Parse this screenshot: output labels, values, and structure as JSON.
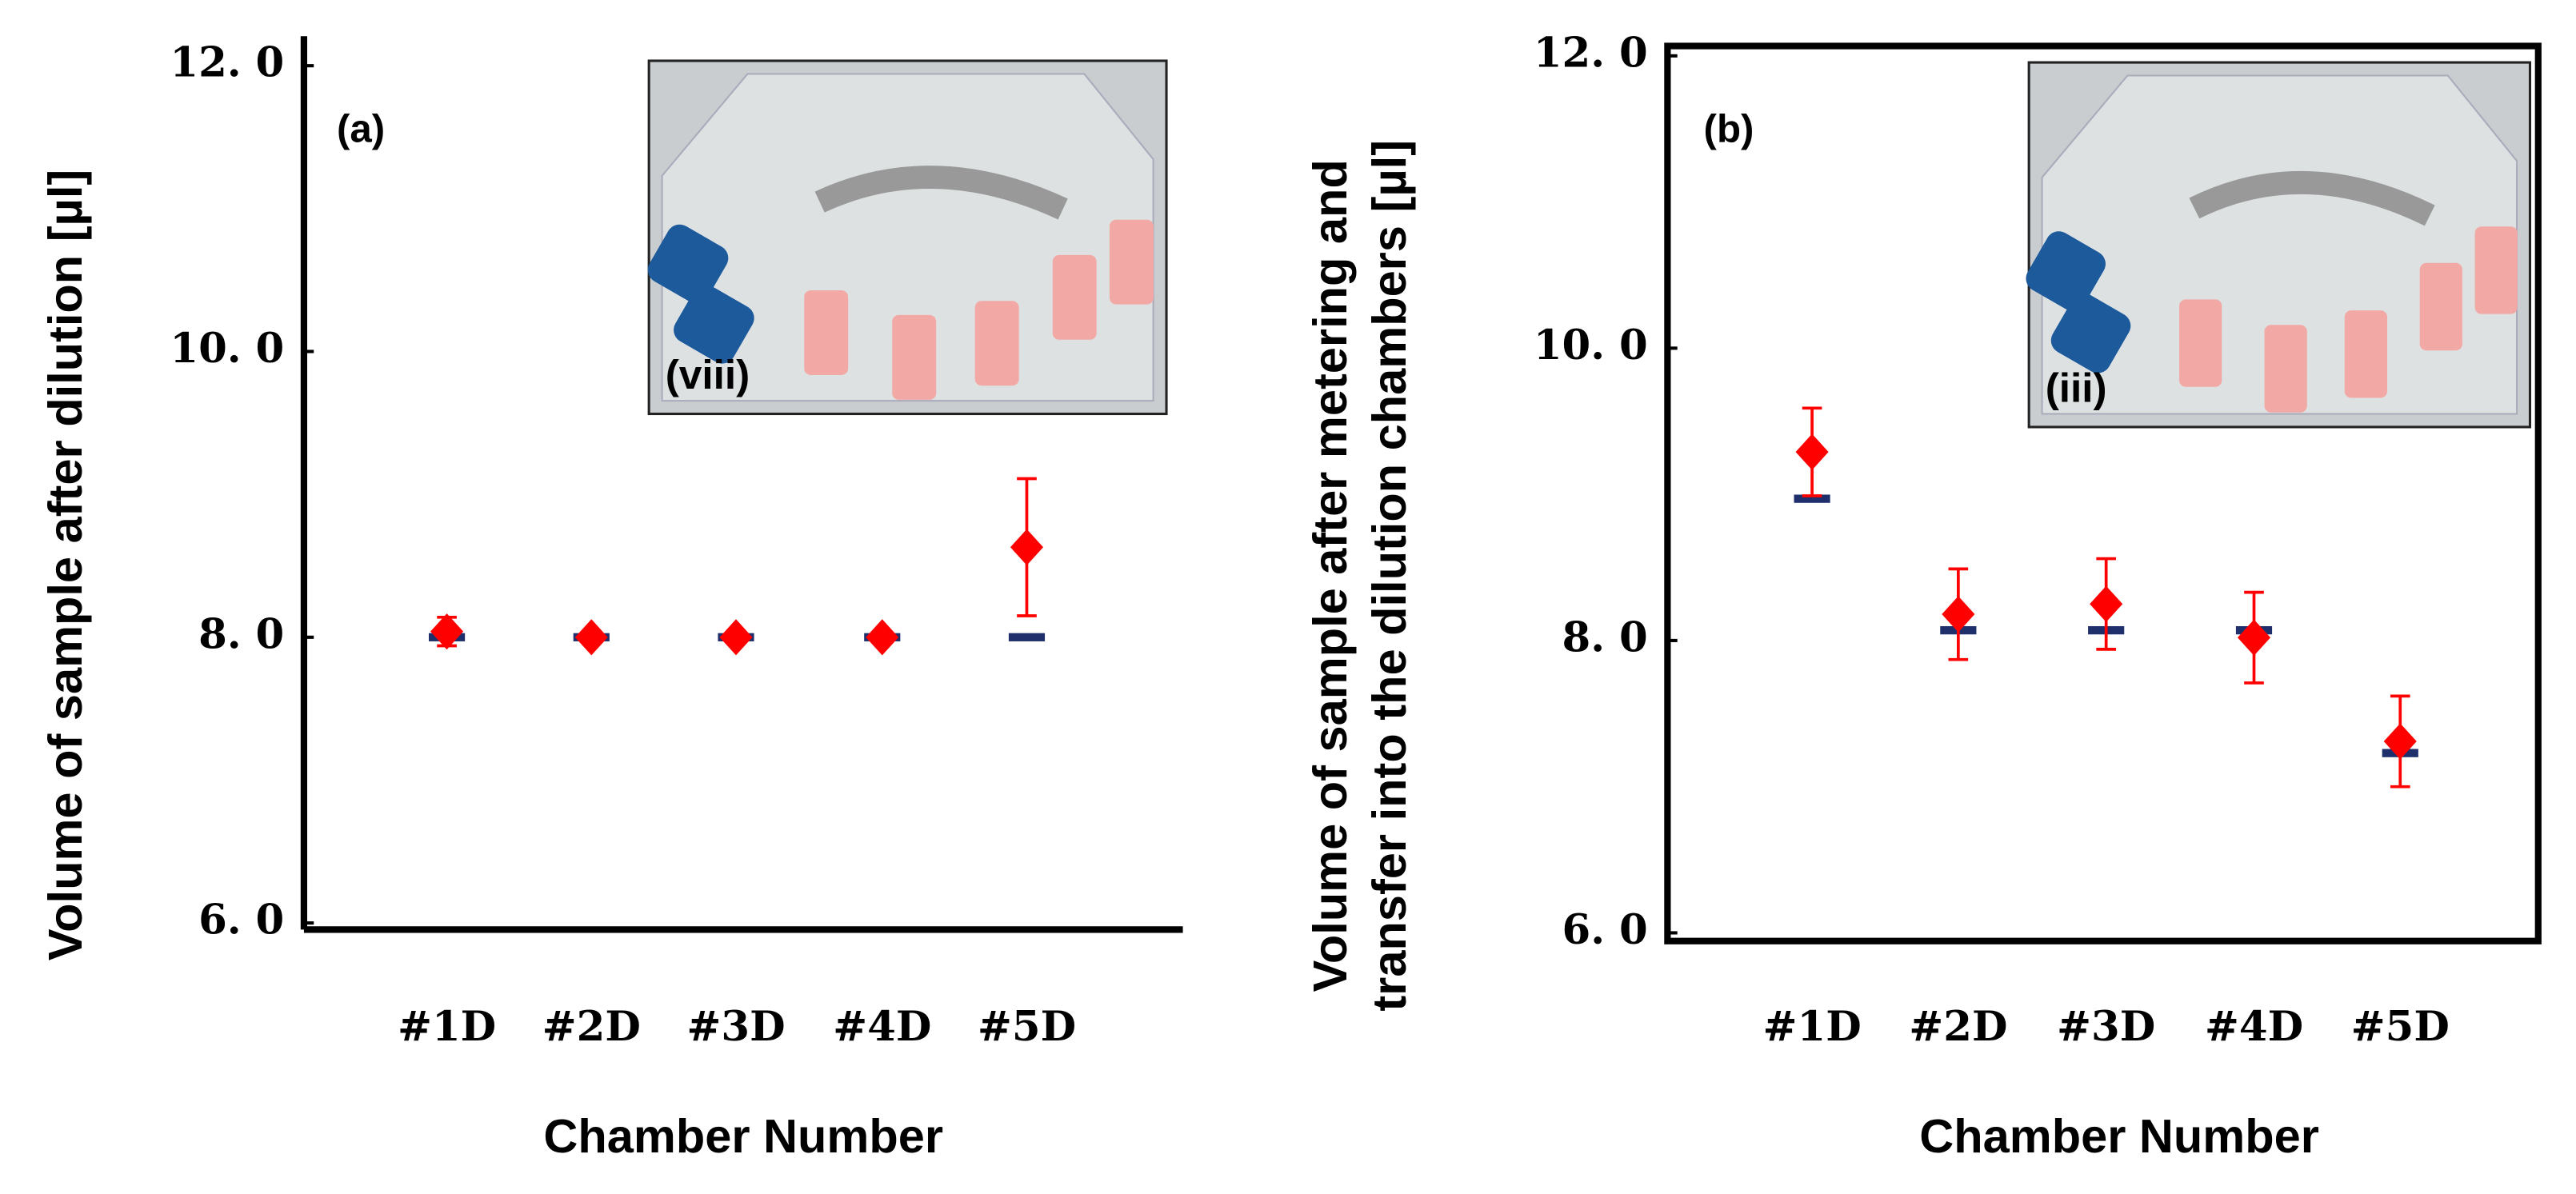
{
  "chart_data": [
    {
      "type": "scatter",
      "panel_label": "(a)",
      "inset_label": "(viii)",
      "xlabel": "Chamber Number",
      "ylabel_lines": [
        "Volume of sample after dilution [µl]"
      ],
      "categories": [
        "#1D",
        "#2D",
        "#3D",
        "#4D",
        "#5D"
      ],
      "ylim": [
        6,
        12
      ],
      "yticks": [
        {
          "value": 6,
          "label": "6. 0"
        },
        {
          "value": 8,
          "label": "8. 0"
        },
        {
          "value": 10,
          "label": "10. 0"
        },
        {
          "value": 12,
          "label": "12. 0"
        }
      ],
      "series": [
        {
          "color": "#ff0000",
          "marker": "diamond",
          "values": [
            8.04,
            8.0,
            8.0,
            8.0,
            8.63
          ],
          "errors": [
            0.1,
            0.03,
            0.02,
            0.02,
            0.48
          ]
        },
        {
          "color": "#1f2f6b",
          "marker": "dash",
          "values": [
            8.0,
            8.0,
            8.0,
            8.0,
            8.0
          ]
        }
      ]
    },
    {
      "type": "scatter",
      "panel_label": "(b)",
      "inset_label": "(iii)",
      "xlabel": "Chamber Number",
      "ylabel_lines": [
        "Volume of sample after metering and",
        "transfer into the dilution chambers [µl]"
      ],
      "categories": [
        "#1D",
        "#2D",
        "#3D",
        "#4D",
        "#5D"
      ],
      "ylim": [
        6,
        12
      ],
      "yticks": [
        {
          "value": 6,
          "label": "6. 0"
        },
        {
          "value": 8,
          "label": "8. 0"
        },
        {
          "value": 10,
          "label": "10. 0"
        },
        {
          "value": 12,
          "label": "12. 0"
        }
      ],
      "series": [
        {
          "color": "#ff0000",
          "marker": "diamond",
          "values": [
            9.29,
            8.18,
            8.25,
            8.02,
            7.31
          ],
          "errors": [
            0.3,
            0.31,
            0.31,
            0.31,
            0.31
          ]
        },
        {
          "color": "#1f2f6b",
          "marker": "dash",
          "values": [
            8.97,
            8.07,
            8.07,
            8.07,
            7.23
          ]
        }
      ]
    }
  ]
}
